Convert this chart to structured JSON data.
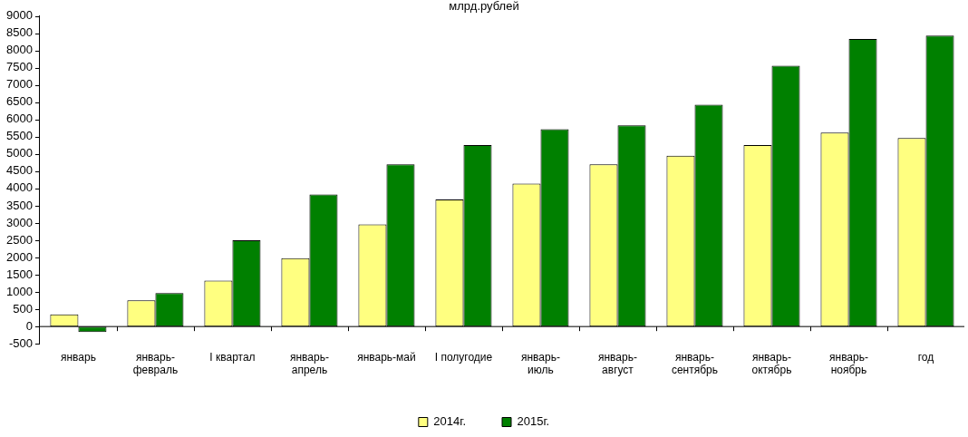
{
  "chart_data": {
    "type": "bar",
    "title": "млрд.рублей",
    "categories": [
      "январь",
      "январь-февраль",
      "I квартал",
      "январь-апрель",
      "январь-май",
      "I полугодие",
      "январь-июль",
      "январь-август",
      "январь-сентябрь",
      "январь-октябрь",
      "январь-ноябрь",
      "год"
    ],
    "series": [
      {
        "name": "2014г.",
        "color": "#ffff80",
        "values": [
          350,
          760,
          1330,
          1980,
          2960,
          3680,
          4140,
          4700,
          4950,
          5260,
          5620,
          5460
        ]
      },
      {
        "name": "2015г.",
        "color": "#008000",
        "values": [
          -160,
          970,
          2500,
          3830,
          4700,
          5260,
          5720,
          5830,
          6430,
          7560,
          8330,
          8430
        ]
      }
    ],
    "ylim": [
      -500,
      9000
    ],
    "yticks": [
      -500,
      0,
      500,
      1000,
      1500,
      2000,
      2500,
      3000,
      3500,
      4000,
      4500,
      5000,
      5500,
      6000,
      6500,
      7000,
      7500,
      8000,
      8500,
      9000
    ],
    "grid": false,
    "legend": "bottom"
  }
}
